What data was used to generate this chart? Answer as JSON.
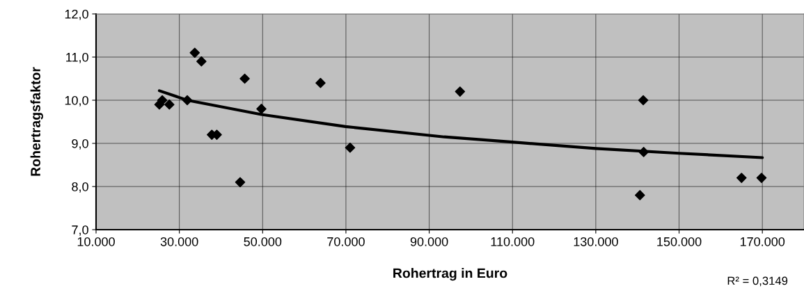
{
  "chart_data": {
    "type": "scatter",
    "xlabel": "Rohertrag in Euro",
    "ylabel": "Rohertragsfaktor",
    "annotations": [
      "R² = 0,3149"
    ],
    "marker": "diamond",
    "grid": true,
    "legend": false,
    "xlim": [
      10000,
      180000
    ],
    "xticks": [
      {
        "value": 10000,
        "label": "10.000"
      },
      {
        "value": 30000,
        "label": "30.000"
      },
      {
        "value": 50000,
        "label": "50.000"
      },
      {
        "value": 70000,
        "label": "70.000"
      },
      {
        "value": 90000,
        "label": "90.000"
      },
      {
        "value": 110000,
        "label": "110.000"
      },
      {
        "value": 130000,
        "label": "130.000"
      },
      {
        "value": 150000,
        "label": "150.000"
      },
      {
        "value": 170000,
        "label": "170.000"
      }
    ],
    "ylim": [
      7,
      12
    ],
    "yticks": [
      {
        "value": 7,
        "label": "7,0"
      },
      {
        "value": 8,
        "label": "8,0"
      },
      {
        "value": 9,
        "label": "9,0"
      },
      {
        "value": 10,
        "label": "10,0"
      },
      {
        "value": 11,
        "label": "11,0"
      },
      {
        "value": 12,
        "label": "12,0"
      }
    ],
    "series": [
      {
        "color": "#000000",
        "x": [
          25200,
          25900,
          27600,
          31900,
          33700,
          35300,
          37800,
          39000,
          44600,
          45700,
          49700,
          63900,
          71000,
          97400,
          141400,
          141500,
          140600,
          165000,
          169800
        ],
        "values": [
          9.9,
          10.0,
          9.9,
          10.0,
          11.1,
          10.9,
          9.2,
          9.2,
          8.1,
          10.5,
          9.8,
          10.4,
          8.9,
          10.2,
          10.0,
          8.8,
          7.8,
          8.2,
          8.2
        ]
      },
      {
        "type": "line",
        "color": "#000000",
        "marker": "none",
        "line_style": "solid",
        "x": [
          25200,
          31900,
          49700,
          69900,
          93600,
          110000,
          130000,
          150000,
          170000
        ],
        "values": [
          10.22,
          10.0,
          9.67,
          9.39,
          9.15,
          9.03,
          8.88,
          8.77,
          8.67
        ]
      }
    ]
  }
}
